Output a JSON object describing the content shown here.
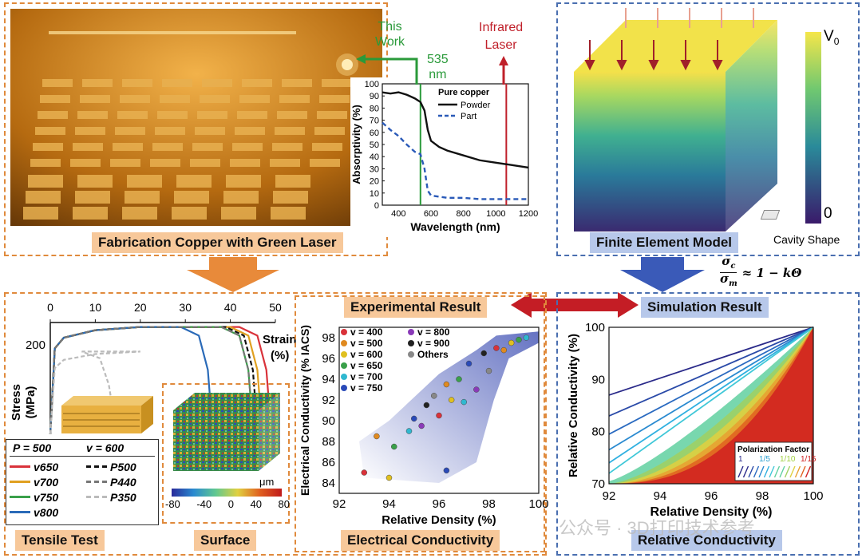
{
  "top_left": {
    "title": "Fabrication Copper with Green Laser",
    "this_work": "This\nWork",
    "wavelength_label": "535\nnm",
    "infrared_label": "Infrared\nLaser",
    "inset_chart": {
      "type": "line",
      "legend_title": "Pure copper",
      "series": [
        {
          "name": "Powder",
          "x": [
            300,
            350,
            400,
            450,
            500,
            535,
            560,
            580,
            600,
            650,
            700,
            800,
            900,
            1000,
            1100,
            1200
          ],
          "values": [
            93,
            92,
            93,
            91,
            88,
            85,
            78,
            62,
            53,
            48,
            45,
            41,
            37,
            35,
            33,
            31
          ]
        },
        {
          "name": "Part",
          "x": [
            300,
            350,
            400,
            450,
            500,
            535,
            560,
            580,
            600,
            650,
            700,
            800,
            900,
            1000,
            1100,
            1200
          ],
          "values": [
            68,
            62,
            57,
            50,
            44,
            42,
            30,
            12,
            8,
            7,
            6,
            6,
            5,
            5,
            5,
            5
          ]
        }
      ],
      "xlabel": "Wavelength (nm)",
      "ylabel": "Absorptivity (%)",
      "xticks": [
        "400",
        "600",
        "800",
        "1000",
        "1200"
      ],
      "yticks": [
        "0",
        "10",
        "20",
        "30",
        "40",
        "50",
        "60",
        "70",
        "80",
        "90",
        "100"
      ],
      "xlim": [
        300,
        1200
      ],
      "ylim": [
        0,
        100
      ],
      "markers": [
        {
          "x": 535,
          "color": "#2a9a3a"
        },
        {
          "x": 1064,
          "color": "#c0202a"
        }
      ]
    }
  },
  "top_right": {
    "title": "Finite Element Model",
    "colorbar_top": "V",
    "colorbar_top_sub": "0",
    "colorbar_bottom": "0",
    "cavity_label": "Cavity Shape"
  },
  "equation": {
    "num": "σ",
    "num_sub": "c",
    "den": "σ",
    "den_sub": "m",
    "rhs": "≈ 1 − kΘ"
  },
  "mid": {
    "experimental": "Experimental Result",
    "simulation": "Simulation Result"
  },
  "tensile": {
    "title": "Tensile Test",
    "xlabel": "Strain\n(%)",
    "ylabel": "Stress\n(MPa)",
    "xticks": [
      "0",
      "10",
      "20",
      "30",
      "40",
      "50"
    ],
    "ytick": "200",
    "legend_p": "P = 500",
    "legend_v": "v = 600",
    "legend_left": [
      {
        "label": "v650",
        "color": "#d9323a"
      },
      {
        "label": "v700",
        "color": "#e0a020"
      },
      {
        "label": "v750",
        "color": "#3aa04a"
      },
      {
        "label": "v800",
        "color": "#2a6ab8"
      }
    ],
    "legend_right": [
      {
        "label": "P500",
        "color": "#111111"
      },
      {
        "label": "P440",
        "color": "#777777"
      },
      {
        "label": "P350",
        "color": "#bbbbbb"
      }
    ]
  },
  "surface": {
    "title": "Surface",
    "unit": "μm",
    "ticks": [
      "-80",
      "-40",
      "0",
      "40",
      "80"
    ]
  },
  "electrical": {
    "title": "Electrical Conductivity",
    "xlabel": "Relative Density (%)",
    "ylabel": "Electrical Conductivity (% IACS)",
    "xticks": [
      "92",
      "94",
      "96",
      "98",
      "100"
    ],
    "yticks": [
      "84",
      "86",
      "88",
      "90",
      "92",
      "94",
      "96",
      "98"
    ],
    "legend": [
      {
        "label": "v = 400",
        "color": "#d9323a"
      },
      {
        "label": "v = 500",
        "color": "#e08a20"
      },
      {
        "label": "v = 600",
        "color": "#e0c020"
      },
      {
        "label": "v = 650",
        "color": "#3aa04a"
      },
      {
        "label": "v = 700",
        "color": "#30b8d0"
      },
      {
        "label": "v = 750",
        "color": "#2a4ab8"
      },
      {
        "label": "v = 800",
        "color": "#8a3ab8"
      },
      {
        "label": "v = 900",
        "color": "#222222"
      },
      {
        "label": "Others",
        "color": "#888888"
      }
    ],
    "chart_data": {
      "type": "scatter",
      "points": [
        {
          "x": 93.0,
          "y": 85.0
        },
        {
          "x": 93.5,
          "y": 88.5
        },
        {
          "x": 94.0,
          "y": 84.5
        },
        {
          "x": 94.2,
          "y": 87.5
        },
        {
          "x": 94.8,
          "y": 89.0
        },
        {
          "x": 95.0,
          "y": 90.2
        },
        {
          "x": 95.3,
          "y": 89.5
        },
        {
          "x": 95.5,
          "y": 91.5
        },
        {
          "x": 95.8,
          "y": 92.4
        },
        {
          "x": 96.0,
          "y": 90.5
        },
        {
          "x": 96.3,
          "y": 93.5
        },
        {
          "x": 96.5,
          "y": 92.0
        },
        {
          "x": 96.8,
          "y": 94.0
        },
        {
          "x": 97.0,
          "y": 91.8
        },
        {
          "x": 97.2,
          "y": 95.5
        },
        {
          "x": 97.5,
          "y": 93.0
        },
        {
          "x": 97.8,
          "y": 96.5
        },
        {
          "x": 98.0,
          "y": 94.8
        },
        {
          "x": 98.3,
          "y": 97.0
        },
        {
          "x": 98.6,
          "y": 96.8
        },
        {
          "x": 98.9,
          "y": 97.5
        },
        {
          "x": 99.2,
          "y": 97.8
        },
        {
          "x": 99.5,
          "y": 98.0
        },
        {
          "x": 96.3,
          "y": 85.2
        }
      ],
      "xlim": [
        92,
        100
      ],
      "ylim": [
        83,
        99
      ]
    }
  },
  "relative": {
    "title": "Relative Conductivity",
    "xlabel": "Relative Density (%)",
    "ylabel": "Relative Conductivity (%)",
    "xticks": [
      "92",
      "94",
      "96",
      "98",
      "100"
    ],
    "yticks": [
      "70",
      "80",
      "90",
      "100"
    ],
    "legend_title": "Polarization Factor",
    "legend_ticks": [
      "1",
      "1/5",
      "1/10",
      "1/15"
    ],
    "chart_data": {
      "type": "line",
      "xlim": [
        92,
        100
      ],
      "ylim": [
        70,
        100
      ],
      "start_values": [
        87,
        83,
        79.5,
        76.5,
        74,
        72,
        70.5,
        70,
        70,
        70,
        70,
        70
      ],
      "colors": [
        "#2a2a8a",
        "#2a4aa8",
        "#2a6ac0",
        "#2a8ad0",
        "#30b0e0",
        "#40c8d8",
        "#60d0a0",
        "#a0d060",
        "#e0d040",
        "#e8a030",
        "#e06020",
        "#d02020"
      ]
    }
  },
  "watermark": "公众号 · 3D打印技术参考"
}
